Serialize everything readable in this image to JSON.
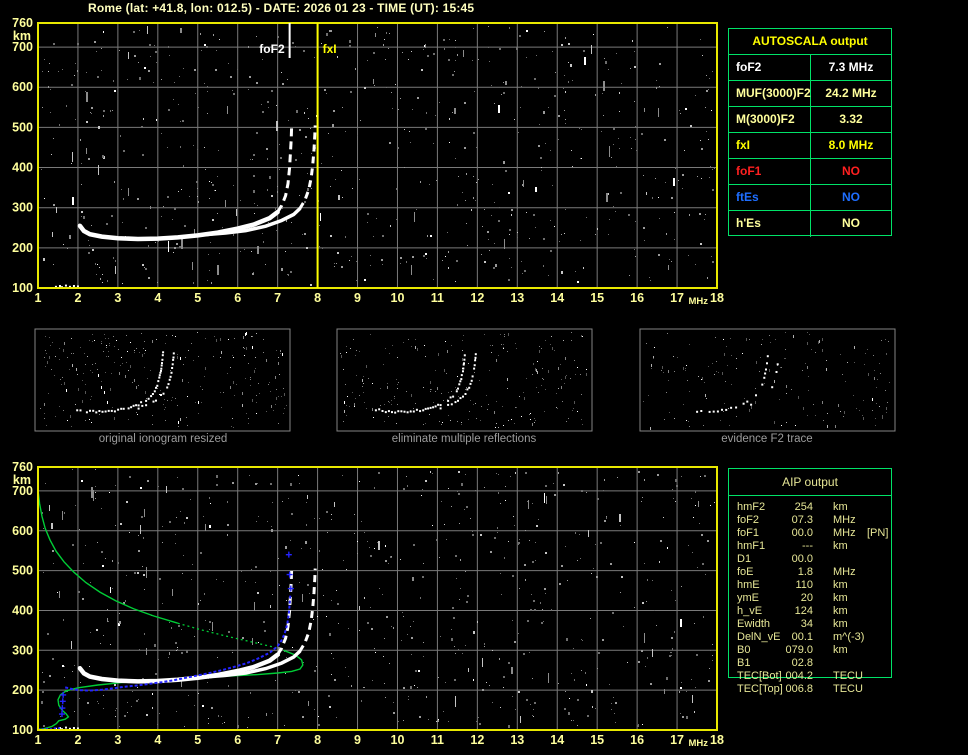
{
  "header": {
    "title": "Rome (lat: +41.8, lon: 012.5) - DATE: 2026 01 23 - TIME (UT): 15:45"
  },
  "colors": {
    "background": "#000000",
    "axis_border": "#e9e900",
    "tick_label": "#ffff9c",
    "grid": "#7a7a7a",
    "title": "#ffffbe",
    "table_border": "#00e268",
    "autoscala_header": "#ffff00",
    "aip_text": "#e6e696",
    "caption": "#9c9c9c",
    "panel_border": "#848484",
    "echo_trace_white": "#ffffff",
    "restored_trace_blue": "#2424ff",
    "profile_green": "#00cd36",
    "noise_gray": "#8a8a8a"
  },
  "autoscala": {
    "header": "AUTOSCALA output",
    "rows": [
      {
        "label": "foF2",
        "value": "7.3 MHz",
        "color": "#ffffff"
      },
      {
        "label": "MUF(3000)F2",
        "value": "24.2 MHz",
        "color": "#ffff9c"
      },
      {
        "label": "M(3000)F2",
        "value": "3.32",
        "color": "#ffff9c"
      },
      {
        "label": "fxI",
        "value": "8.0 MHz",
        "color": "#ffff00"
      },
      {
        "label": "foF1",
        "value": "NO",
        "color": "#ff2020"
      },
      {
        "label": "ftEs",
        "value": "NO",
        "color": "#1e6eff"
      },
      {
        "label": "h'Es",
        "value": "NO",
        "color": "#ffff9c"
      }
    ]
  },
  "aip": {
    "header": "AIP output",
    "rows": [
      {
        "label": "hmF2",
        "value": "254",
        "unit": "km",
        "extra": ""
      },
      {
        "label": "foF2",
        "value": "07.3",
        "unit": "MHz",
        "extra": ""
      },
      {
        "label": "foF1",
        "value": "00.0",
        "unit": "MHz",
        "extra": "[PN]"
      },
      {
        "label": "hmF1",
        "value": "---",
        "unit": "km",
        "extra": ""
      },
      {
        "label": "D1",
        "value": "00.0",
        "unit": "",
        "extra": ""
      },
      {
        "label": "foE",
        "value": "1.8",
        "unit": "MHz",
        "extra": ""
      },
      {
        "label": "hmE",
        "value": "110",
        "unit": "km",
        "extra": ""
      },
      {
        "label": "ymE",
        "value": "20",
        "unit": "km",
        "extra": ""
      },
      {
        "label": "h_vE",
        "value": "124",
        "unit": "km",
        "extra": ""
      },
      {
        "label": "Ewidth",
        "value": "34",
        "unit": "km",
        "extra": ""
      },
      {
        "label": "DelN_vE",
        "value": "00.1",
        "unit": "m^(-3)",
        "extra": ""
      },
      {
        "label": "B0",
        "value": "079.0",
        "unit": "km",
        "extra": ""
      },
      {
        "label": "B1",
        "value": "02.8",
        "unit": "",
        "extra": ""
      },
      {
        "label": "TEC[Bot]",
        "value": "004.2",
        "unit": "TECU",
        "extra": ""
      },
      {
        "label": "TEC[Top]",
        "value": "006.8",
        "unit": "TECU",
        "extra": ""
      }
    ]
  },
  "panels": [
    {
      "caption": "original ionogram resized"
    },
    {
      "caption": "eliminate multiple reflections"
    },
    {
      "caption": "evidence F2 trace"
    }
  ],
  "chart_data": {
    "type": "scatter",
    "shared": {
      "x_unit_label": "MHz",
      "y_unit_label": "km",
      "xticks": [
        1,
        2,
        3,
        4,
        5,
        6,
        7,
        8,
        9,
        10,
        11,
        12,
        13,
        14,
        15,
        16,
        17,
        18
      ],
      "yticks": [
        760,
        700,
        600,
        500,
        400,
        300,
        200,
        100
      ],
      "xlim": [
        1,
        18
      ],
      "ylim": [
        100,
        760
      ],
      "grid": true,
      "echo_traces": {
        "o_flat": [
          [
            2.05,
            255
          ],
          [
            2.15,
            242
          ],
          [
            2.3,
            234
          ],
          [
            2.6,
            228
          ],
          [
            3.0,
            224
          ],
          [
            3.5,
            222
          ],
          [
            4.0,
            223
          ],
          [
            4.5,
            226
          ],
          [
            5.0,
            231
          ],
          [
            5.5,
            238
          ],
          [
            6.0,
            248
          ],
          [
            6.4,
            258
          ],
          [
            6.8,
            274
          ],
          [
            7.0,
            289
          ]
        ],
        "o_rise": [
          [
            7.0,
            289
          ],
          [
            7.1,
            305
          ],
          [
            7.2,
            330
          ],
          [
            7.26,
            360
          ],
          [
            7.3,
            400
          ],
          [
            7.32,
            435
          ],
          [
            7.34,
            470
          ],
          [
            7.35,
            500
          ]
        ],
        "x_flat": [
          [
            5.2,
            233
          ],
          [
            5.7,
            237
          ],
          [
            6.2,
            243
          ],
          [
            6.7,
            254
          ],
          [
            7.1,
            268
          ],
          [
            7.4,
            283
          ],
          [
            7.55,
            297
          ]
        ],
        "x_rise": [
          [
            7.55,
            297
          ],
          [
            7.68,
            318
          ],
          [
            7.78,
            345
          ],
          [
            7.84,
            375
          ],
          [
            7.88,
            408
          ],
          [
            7.91,
            445
          ],
          [
            7.93,
            480
          ],
          [
            7.94,
            505
          ]
        ],
        "e_dots": [
          [
            1.45,
            103
          ],
          [
            1.55,
            105
          ],
          [
            1.6,
            102
          ],
          [
            1.7,
            106
          ],
          [
            1.8,
            103
          ],
          [
            1.9,
            105
          ],
          [
            2.0,
            104
          ]
        ]
      }
    },
    "charts": [
      {
        "id": "top_ionogram",
        "description": "recorded ionogram with AUTOSCALA scaled characteristics",
        "series": [
          "o_flat",
          "o_rise",
          "x_flat",
          "x_rise",
          "e_dots"
        ],
        "markers": [
          {
            "name": "foF2",
            "freq_mhz": 7.3,
            "label": "foF2",
            "color": "#ffffff",
            "full_height": false
          },
          {
            "name": "fxI",
            "freq_mhz": 8.0,
            "label": "fxI",
            "color": "#ffff00",
            "full_height": true
          }
        ]
      },
      {
        "id": "bottom_ionogram",
        "description": "ionogram with restored trace (blue) and electron density profile (green)",
        "series": [
          "o_flat",
          "o_rise",
          "x_flat",
          "x_rise",
          "e_dots"
        ],
        "markers": [],
        "blue_restored_trace": {
          "bottom_seg": [
            [
              1.0,
              102
            ],
            [
              1.1,
              102
            ],
            [
              1.2,
              103
            ],
            [
              1.3,
              102
            ],
            [
              1.4,
              104
            ],
            [
              1.5,
              104
            ],
            [
              1.58,
              105
            ]
          ],
          "rise_plus": [
            [
              1.6,
              140
            ],
            [
              1.61,
              155
            ],
            [
              1.62,
              172
            ],
            [
              1.63,
              188
            ]
          ],
          "main": [
            [
              1.68,
              207
            ],
            [
              1.85,
              203
            ],
            [
              2.05,
              200
            ],
            [
              2.3,
              199
            ],
            [
              2.6,
              201
            ],
            [
              2.9,
              205
            ],
            [
              3.2,
              209
            ],
            [
              3.5,
              212
            ],
            [
              3.8,
              216
            ],
            [
              4.1,
              220
            ],
            [
              4.4,
              225
            ],
            [
              4.7,
              231
            ],
            [
              5.0,
              237
            ],
            [
              5.3,
              243
            ],
            [
              5.6,
              250
            ],
            [
              5.9,
              258
            ],
            [
              6.2,
              267
            ],
            [
              6.5,
              279
            ],
            [
              6.8,
              294
            ],
            [
              7.0,
              310
            ],
            [
              7.1,
              325
            ],
            [
              7.18,
              343
            ],
            [
              7.24,
              365
            ],
            [
              7.28,
              390
            ],
            [
              7.3,
              415
            ],
            [
              7.32,
              440
            ]
          ],
          "upper_plus": [
            [
              7.33,
              455
            ],
            [
              7.3,
              490
            ],
            [
              7.28,
              540
            ]
          ]
        },
        "green_profile": {
          "upper_solid": [
            [
              1.0,
              703
            ],
            [
              1.04,
              668
            ],
            [
              1.1,
              636
            ],
            [
              1.18,
              606
            ],
            [
              1.3,
              577
            ],
            [
              1.45,
              549
            ],
            [
              1.65,
              522
            ],
            [
              1.9,
              496
            ],
            [
              2.2,
              470
            ],
            [
              2.55,
              446
            ],
            [
              2.95,
              424
            ],
            [
              3.4,
              404
            ],
            [
              3.9,
              386
            ],
            [
              4.5,
              368
            ]
          ],
          "mid_dashed": [
            [
              4.5,
              368
            ],
            [
              5.1,
              351
            ],
            [
              5.7,
              336
            ],
            [
              6.3,
              322
            ],
            [
              6.9,
              308
            ],
            [
              7.15,
              300
            ]
          ],
          "lower_solid": [
            [
              7.15,
              300
            ],
            [
              7.45,
              288
            ],
            [
              7.6,
              276
            ],
            [
              7.63,
              263
            ],
            [
              7.56,
              253
            ],
            [
              7.35,
              247
            ],
            [
              7.0,
              243
            ],
            [
              6.5,
              239
            ],
            [
              5.9,
              236
            ],
            [
              5.2,
              232
            ],
            [
              4.5,
              228
            ],
            [
              3.8,
              224
            ],
            [
              3.1,
              219
            ],
            [
              2.5,
              213
            ],
            [
              2.0,
              206
            ],
            [
              1.7,
              198
            ],
            [
              1.56,
              188
            ],
            [
              1.5,
              176
            ],
            [
              1.52,
              162
            ],
            [
              1.6,
              150
            ],
            [
              1.7,
              141
            ],
            [
              1.76,
              133
            ],
            [
              1.68,
              127
            ],
            [
              1.52,
              123
            ],
            [
              1.46,
              116
            ],
            [
              1.35,
              109
            ],
            [
              1.18,
              104
            ],
            [
              1.02,
              101
            ]
          ]
        }
      }
    ],
    "mini_panels": {
      "arc_main": [
        [
          0.14,
          0.8
        ],
        [
          0.18,
          0.815
        ],
        [
          0.23,
          0.82
        ],
        [
          0.28,
          0.815
        ],
        [
          0.33,
          0.8
        ],
        [
          0.37,
          0.775
        ],
        [
          0.4,
          0.745
        ],
        [
          0.43,
          0.7
        ],
        [
          0.45,
          0.655
        ],
        [
          0.465,
          0.6
        ],
        [
          0.475,
          0.54
        ],
        [
          0.483,
          0.47
        ],
        [
          0.49,
          0.39
        ],
        [
          0.494,
          0.31
        ],
        [
          0.497,
          0.24
        ],
        [
          0.5,
          0.17
        ]
      ],
      "arc_x": [
        [
          0.4,
          0.78
        ],
        [
          0.43,
          0.755
        ],
        [
          0.46,
          0.72
        ],
        [
          0.48,
          0.68
        ],
        [
          0.5,
          0.63
        ],
        [
          0.515,
          0.565
        ],
        [
          0.525,
          0.49
        ],
        [
          0.532,
          0.41
        ],
        [
          0.537,
          0.33
        ],
        [
          0.54,
          0.25
        ],
        [
          0.543,
          0.18
        ]
      ]
    }
  }
}
